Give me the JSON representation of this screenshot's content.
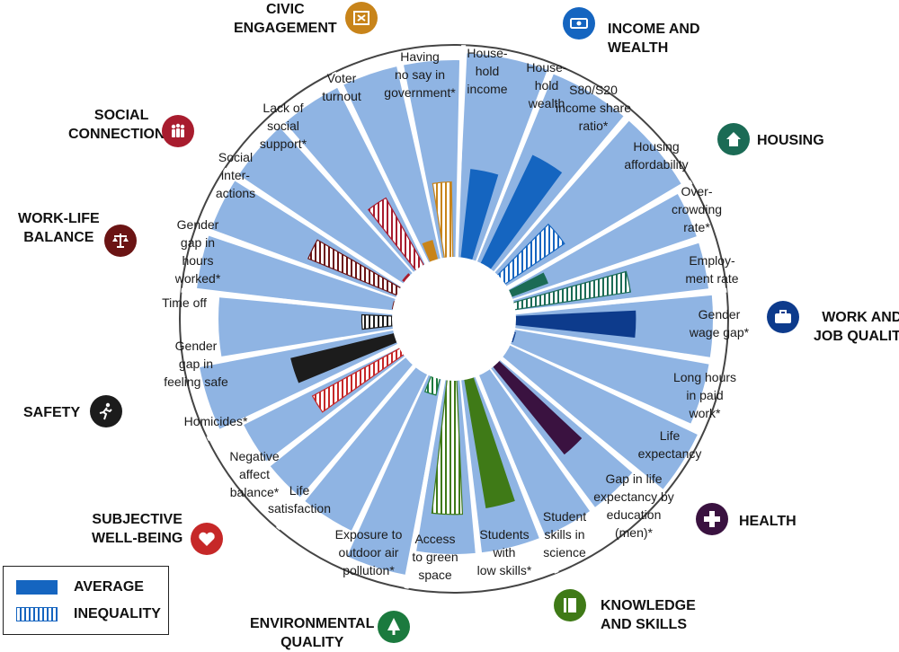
{
  "chart_data": {
    "type": "radial-bar",
    "title": "",
    "scale": [
      0,
      1
    ],
    "categories": [
      {
        "id": "income",
        "title": [
          "INCOME AND",
          "WEALTH"
        ],
        "color": "#1565c0",
        "icon": "money-icon",
        "indicators": [
          {
            "label": [
              "House-",
              "hold",
              "income"
            ],
            "kind": "average",
            "value": 0.52
          },
          {
            "label": [
              "House-",
              "hold",
              "wealth"
            ],
            "kind": "average",
            "value": 0.7
          },
          {
            "label": [
              "S80/S20",
              "income share",
              "ratio*"
            ],
            "kind": "inequality",
            "value": 0.42
          }
        ]
      },
      {
        "id": "housing",
        "title": [
          "HOUSING"
        ],
        "color": "#1b6b55",
        "icon": "house-icon",
        "indicators": [
          {
            "label": [
              "Housing",
              "affordability"
            ],
            "kind": "average",
            "value": 0.23
          },
          {
            "label": [
              "Over-",
              "crowding",
              "rate*"
            ],
            "kind": "inequality",
            "value": 0.68
          }
        ]
      },
      {
        "id": "jobs",
        "title": [
          "WORK AND",
          "JOB QUALITY"
        ],
        "color": "#0d3b8c",
        "icon": "briefcase-icon",
        "indicators": [
          {
            "label": [
              "Employ-",
              "ment rate"
            ],
            "kind": "average",
            "value": 0.7
          },
          {
            "label": [
              "Gender",
              "wage gap*"
            ],
            "kind": "inequality",
            "value": 0.01
          },
          {
            "label": [
              "Long hours",
              "in paid",
              "work*"
            ],
            "kind": "inequality",
            "value": 0.0
          }
        ]
      },
      {
        "id": "health",
        "title": [
          "HEALTH"
        ],
        "color": "#3a1240",
        "icon": "cross-icon",
        "indicators": [
          {
            "label": [
              "Life",
              "expectancy"
            ],
            "kind": "average",
            "value": 0.66
          },
          {
            "label": [
              "Gap in life",
              "expectancy by",
              "education",
              "(men)*"
            ],
            "kind": "inequality",
            "value": 0.0
          }
        ]
      },
      {
        "id": "knowledge",
        "title": [
          "KNOWLEDGE",
          "AND SKILLS"
        ],
        "color": "#3f7a17",
        "icon": "book-icon",
        "indicators": [
          {
            "label": [
              "Student",
              "skills in",
              "science"
            ],
            "kind": "average",
            "value": 0.76
          },
          {
            "label": [
              "Students",
              "with",
              "low skills*"
            ],
            "kind": "inequality",
            "value": 0.78
          }
        ]
      },
      {
        "id": "environment",
        "title": [
          "ENVIRONMENTAL",
          "QUALITY"
        ],
        "color": "#1b7a3e",
        "icon": "tree-icon",
        "indicators": [
          {
            "label": [
              "Access",
              "to green",
              "space"
            ],
            "kind": "inequality",
            "value": 0.1
          },
          {
            "label": [
              "Exposure to",
              "outdoor air",
              "pollution*"
            ],
            "kind": "inequality",
            "value": 0.0
          }
        ]
      },
      {
        "id": "wellbeing",
        "title": [
          "SUBJECTIVE",
          "WELL-BEING"
        ],
        "color": "#c62828",
        "icon": "heart-icon",
        "indicators": [
          {
            "label": [
              "Life",
              "satisfaction"
            ],
            "kind": "average",
            "value": 0.0
          },
          {
            "label": [
              "Negative",
              "affect",
              "balance*"
            ],
            "kind": "inequality",
            "value": 0.58
          }
        ]
      },
      {
        "id": "safety",
        "title": [
          "SAFETY"
        ],
        "color": "#1c1c1c",
        "icon": "runner-icon",
        "indicators": [
          {
            "label": [
              "Homicides*"
            ],
            "kind": "average",
            "value": 0.62
          },
          {
            "label": [
              "Gender",
              "gap in",
              "feeling safe"
            ],
            "kind": "inequality",
            "value": 0.18
          }
        ]
      },
      {
        "id": "worklife",
        "title": [
          "WORK-LIFE",
          "BALANCE"
        ],
        "color": "#6b1414",
        "icon": "scales-icon",
        "indicators": [
          {
            "label": [
              "Time off"
            ],
            "kind": "average",
            "value": 0.01
          },
          {
            "label": [
              "Gender",
              "gap in",
              "hours",
              "worked*"
            ],
            "kind": "inequality",
            "value": 0.56
          }
        ]
      },
      {
        "id": "social",
        "title": [
          "SOCIAL",
          "CONNECTIONS"
        ],
        "color": "#a81c2e",
        "icon": "people-icon",
        "indicators": [
          {
            "label": [
              "Social",
              "inter-",
              "actions"
            ],
            "kind": "average",
            "value": 0.02
          },
          {
            "label": [
              "Lack of",
              "social",
              "support*"
            ],
            "kind": "inequality",
            "value": 0.45
          }
        ]
      },
      {
        "id": "civic",
        "title": [
          "CIVIC",
          "ENGAGEMENT"
        ],
        "color": "#c8841a",
        "icon": "ballot-icon",
        "indicators": [
          {
            "label": [
              "Voter",
              "turnout"
            ],
            "kind": "average",
            "value": 0.12
          },
          {
            "label": [
              "Having",
              "no say in",
              "government*"
            ],
            "kind": "inequality",
            "value": 0.44
          }
        ]
      }
    ]
  },
  "legend": {
    "average_label": "AVERAGE",
    "inequality_label": "INEQUALITY"
  },
  "colors": {
    "segment_fill": "#8fb4e3",
    "background": "#ffffff",
    "outline": "#444444"
  }
}
